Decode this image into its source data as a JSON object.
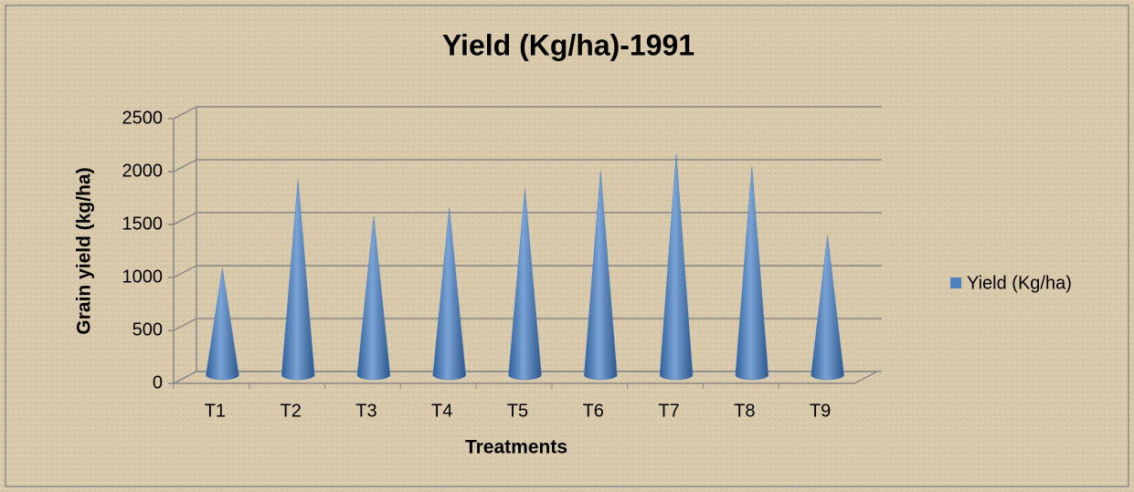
{
  "chart_data": {
    "type": "bar",
    "title": "Yield (Kg/ha)-1991",
    "x_label": "Treatments",
    "y_label": "Grain yield (kg/ha)",
    "categories": [
      "T1",
      "T2",
      "T3",
      "T4",
      "T5",
      "T6",
      "T7",
      "T8",
      "T9"
    ],
    "series": [
      {
        "name": "Yield (Kg/ha)",
        "color": "#4f81bd",
        "values": [
          1010,
          1850,
          1500,
          1580,
          1760,
          1930,
          2090,
          1970,
          1320
        ]
      }
    ],
    "ylim": [
      0,
      2500
    ],
    "yticks": [
      0,
      500,
      1000,
      1500,
      2000,
      2500
    ],
    "grid": true,
    "legend": "right"
  }
}
